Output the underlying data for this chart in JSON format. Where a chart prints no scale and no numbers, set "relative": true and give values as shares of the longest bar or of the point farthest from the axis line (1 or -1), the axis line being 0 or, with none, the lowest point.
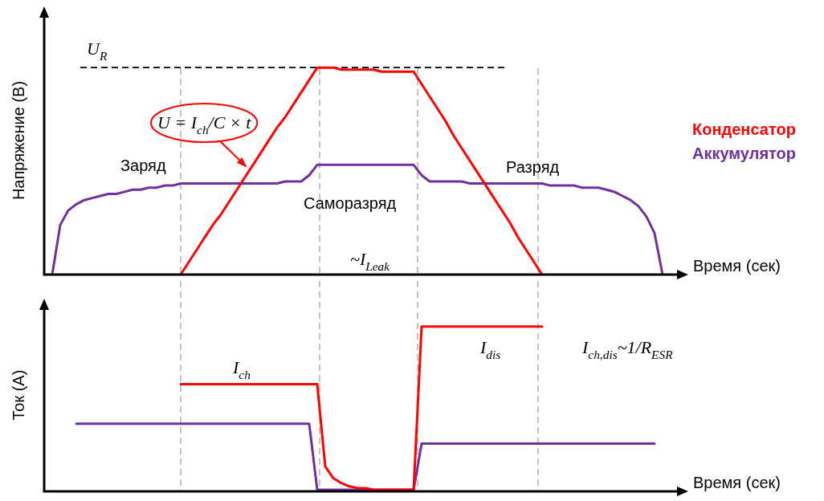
{
  "chart_data": [
    {
      "type": "line",
      "ylabel": "Напряжение (В)",
      "xlabel": "Время (сек)",
      "relative": true,
      "legend": "right",
      "marker": "none",
      "line_style": "solid",
      "categories": [
        null,
        null,
        null,
        null,
        null,
        null,
        null,
        null,
        null,
        null,
        null,
        null,
        null,
        null,
        null,
        null,
        null,
        null,
        null,
        null,
        null,
        null,
        null,
        null,
        null,
        null,
        null,
        null,
        null,
        null,
        null,
        null,
        null,
        null,
        null,
        null,
        null,
        null,
        null,
        null,
        null,
        null,
        null,
        null,
        null,
        null,
        null,
        null,
        null,
        null,
        null,
        null,
        null,
        null,
        null,
        null,
        null,
        null,
        null,
        null,
        null,
        null,
        null,
        null,
        null,
        null,
        null,
        null,
        null,
        null,
        null,
        null,
        null,
        null,
        null,
        null,
        null,
        null,
        null,
        null
      ],
      "series": [
        {
          "name": "Конденсатор",
          "color": "#ff0000",
          "values": [
            null,
            null,
            null,
            null,
            null,
            null,
            null,
            null,
            null,
            null,
            null,
            null,
            null,
            null,
            null,
            null,
            null,
            0,
            0.06,
            0.12,
            0.18,
            0.24,
            0.29,
            0.35,
            0.41,
            0.47,
            0.53,
            0.59,
            0.65,
            0.71,
            0.76,
            0.82,
            0.88,
            0.94,
            1,
            1,
            1,
            0.99,
            0.99,
            0.99,
            0.99,
            0.99,
            0.98,
            0.98,
            0.98,
            0.98,
            0.98,
            0.92,
            0.86,
            0.8,
            0.74,
            0.67,
            0.61,
            0.55,
            0.49,
            0.43,
            0.37,
            0.31,
            0.25,
            0.18,
            0.12,
            0.06,
            0,
            null,
            null,
            null,
            null,
            null,
            null,
            null,
            null,
            null,
            null,
            null,
            null,
            null,
            null,
            null,
            null,
            null
          ]
        },
        {
          "name": "Аккумулятор",
          "color": "#7030a0",
          "values": [
            null,
            0,
            0.24,
            0.31,
            0.34,
            0.36,
            0.37,
            0.38,
            0.39,
            0.39,
            0.4,
            0.41,
            0.41,
            0.42,
            0.42,
            0.43,
            0.43,
            0.44,
            0.44,
            0.44,
            0.44,
            0.44,
            0.44,
            0.44,
            0.44,
            0.44,
            0.44,
            0.44,
            0.44,
            0.44,
            0.45,
            0.45,
            0.45,
            0.48,
            0.53,
            0.53,
            0.53,
            0.53,
            0.53,
            0.53,
            0.53,
            0.53,
            0.53,
            0.53,
            0.53,
            0.53,
            0.53,
            0.48,
            0.45,
            0.45,
            0.45,
            0.45,
            0.45,
            0.44,
            0.44,
            0.44,
            0.44,
            0.44,
            0.44,
            0.44,
            0.44,
            0.44,
            0.44,
            0.43,
            0.43,
            0.43,
            0.43,
            0.42,
            0.42,
            0.42,
            0.41,
            0.4,
            0.38,
            0.36,
            0.33,
            0.28,
            0.2,
            0,
            null,
            null
          ]
        }
      ],
      "ref_lines": [
        {
          "axis": "y",
          "value": 1,
          "label": "U$_{R}$",
          "line_style": "dashed",
          "color": "#000000"
        }
      ],
      "annotations": [
        "Заряд",
        "Саморазряд",
        "Разряд",
        "U = I$_{ch}$/C × t",
        "~I$_{Leak}$"
      ]
    },
    {
      "type": "line",
      "ylabel": "Ток (А)",
      "xlabel": "Время (сек)",
      "relative": true,
      "marker": "none",
      "line_style": "solid",
      "categories": [
        null,
        null,
        null,
        null,
        null,
        null,
        null,
        null,
        null,
        null,
        null,
        null,
        null,
        null,
        null,
        null,
        null,
        null,
        null,
        null,
        null,
        null,
        null,
        null,
        null,
        null,
        null,
        null,
        null,
        null,
        null,
        null,
        null,
        null,
        null,
        null,
        null,
        null,
        null,
        null,
        null,
        null,
        null,
        null,
        null,
        null,
        null,
        null,
        null,
        null,
        null,
        null,
        null,
        null,
        null,
        null,
        null,
        null,
        null,
        null,
        null,
        null,
        null,
        null,
        null,
        null,
        null,
        null,
        null,
        null,
        null,
        null,
        null,
        null,
        null,
        null,
        null,
        null,
        null,
        null
      ],
      "series": [
        {
          "color": "#ff0000",
          "values": [
            null,
            null,
            null,
            null,
            null,
            null,
            null,
            null,
            null,
            null,
            null,
            null,
            null,
            null,
            null,
            null,
            null,
            0.65,
            0.65,
            0.65,
            0.65,
            0.65,
            0.65,
            0.65,
            0.65,
            0.65,
            0.65,
            0.65,
            0.65,
            0.65,
            0.65,
            0.65,
            0.65,
            0.65,
            0.65,
            0.15,
            0.08,
            0.05,
            0.03,
            0.02,
            0.02,
            0.01,
            0.01,
            0.01,
            0.01,
            0.01,
            0.01,
            1,
            1,
            1,
            1,
            1,
            1,
            1,
            1,
            1,
            1,
            1,
            1,
            1,
            1,
            1,
            1,
            null,
            null,
            null,
            null,
            null,
            null,
            null,
            null,
            null,
            null,
            null,
            null,
            null,
            null,
            null,
            null,
            null
          ]
        },
        {
          "color": "#7030a0",
          "values": [
            null,
            null,
            null,
            null,
            0.41,
            0.41,
            0.41,
            0.41,
            0.41,
            0.41,
            0.41,
            0.41,
            0.41,
            0.41,
            0.41,
            0.41,
            0.41,
            0.41,
            0.41,
            0.41,
            0.41,
            0.41,
            0.41,
            0.41,
            0.41,
            0.41,
            0.41,
            0.41,
            0.41,
            0.41,
            0.41,
            0.41,
            0.41,
            0.41,
            0.01,
            0.01,
            0.01,
            0.01,
            0.01,
            0.01,
            0.01,
            0.01,
            0.01,
            0.01,
            0.01,
            0.01,
            0.01,
            0.29,
            0.29,
            0.29,
            0.29,
            0.29,
            0.29,
            0.29,
            0.29,
            0.29,
            0.29,
            0.29,
            0.29,
            0.29,
            0.29,
            0.29,
            0.29,
            0.29,
            0.29,
            0.29,
            0.29,
            0.29,
            0.29,
            0.29,
            0.29,
            0.29,
            0.29,
            0.29,
            0.29,
            0.29,
            0.29,
            null,
            null,
            null
          ]
        }
      ],
      "annotations": [
        "I$_{ch}$",
        "I$_{dis}$",
        "I$_{ch,dis}$~1/R$_{ESR}$"
      ]
    }
  ]
}
